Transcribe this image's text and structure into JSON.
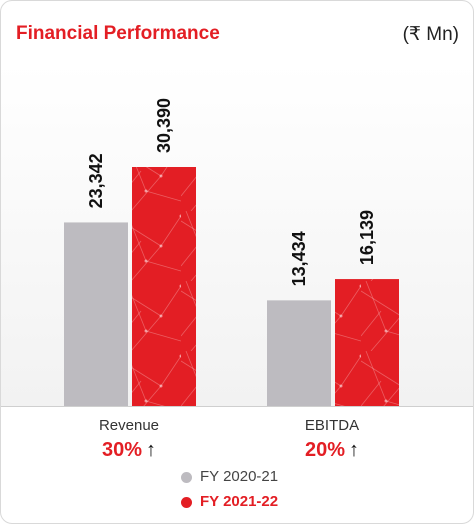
{
  "title": "Financial Performance",
  "unit": "(₹ Mn)",
  "chart_data": {
    "type": "bar",
    "categories": [
      "Revenue",
      "EBITDA"
    ],
    "series": [
      {
        "name": "FY 2020-21",
        "values": [
          23342,
          13434
        ],
        "labels": [
          "23,342",
          "13,434"
        ],
        "color": "#bdbbc0"
      },
      {
        "name": "FY 2021-22",
        "values": [
          30390,
          16139
        ],
        "labels": [
          "30,390",
          "16,139"
        ],
        "color": "#e31e24"
      }
    ],
    "growth": [
      "30%",
      "20%"
    ],
    "growth_arrow": "↑",
    "ylim": [
      0,
      40000
    ]
  }
}
